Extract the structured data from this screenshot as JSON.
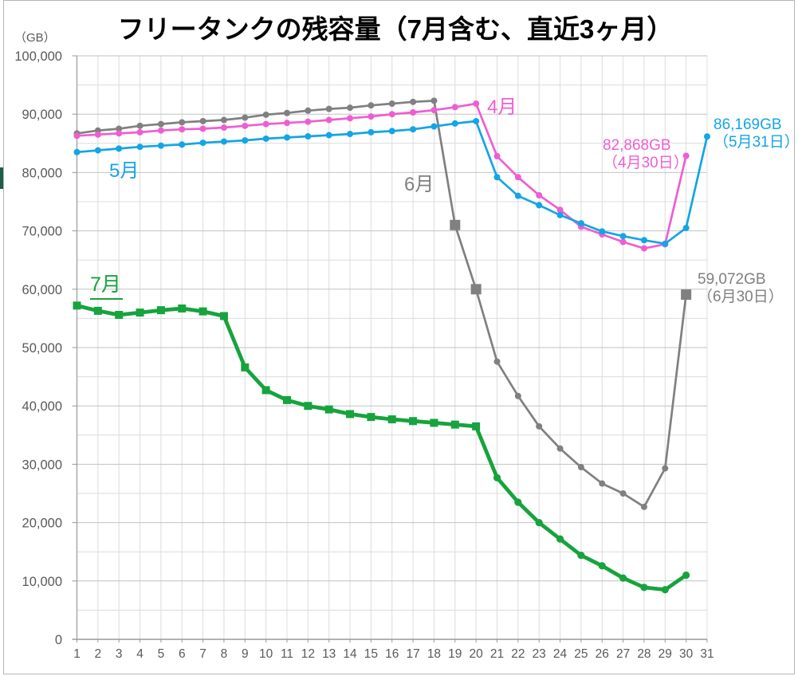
{
  "chart_data": {
    "type": "line",
    "title": "フリータンクの残容量（7月含む、直近3ヶ月）",
    "unit_label": "（GB）",
    "xlabel": "",
    "ylabel": "（GB）",
    "ylim": [
      0,
      100000
    ],
    "y_tick_step": 10000,
    "y_minor_step": 5000,
    "grid": true,
    "legend_position": "inline-labels",
    "x_tick_labels": [
      "1",
      "2",
      "3",
      "4",
      "5",
      "6",
      "7",
      "8",
      "9",
      "10",
      "11",
      "12",
      "13",
      "14",
      "15",
      "16",
      "17",
      "18",
      "19",
      "20",
      "21",
      "22",
      "23",
      "24",
      "25",
      "26",
      "27",
      "28",
      "29",
      "30",
      "31"
    ],
    "y_tick_labels": [
      "0",
      "10,000",
      "20,000",
      "30,000",
      "40,000",
      "50,000",
      "60,000",
      "70,000",
      "80,000",
      "90,000",
      "100,000"
    ],
    "series": [
      {
        "name": "4月",
        "color": "#ee5ed2",
        "marker": "circle",
        "line_width": 2.7,
        "values": [
          86300,
          86500,
          86700,
          86900,
          87200,
          87400,
          87500,
          87700,
          88000,
          88300,
          88500,
          88700,
          89000,
          89300,
          89600,
          90000,
          90300,
          90700,
          91200,
          91800,
          82800,
          79200,
          76100,
          73600,
          70700,
          69400,
          68100,
          67000,
          67700,
          82868
        ]
      },
      {
        "name": "5月",
        "color": "#13a5e6",
        "marker": "circle",
        "line_width": 2.7,
        "values": [
          83500,
          83800,
          84100,
          84400,
          84600,
          84800,
          85100,
          85300,
          85500,
          85800,
          86000,
          86200,
          86400,
          86600,
          86900,
          87100,
          87400,
          87900,
          88400,
          88800,
          79200,
          76000,
          74400,
          72700,
          71300,
          69900,
          69100,
          68400,
          67800,
          70500,
          86169
        ]
      },
      {
        "name": "6月",
        "color": "#808080",
        "marker": "circle",
        "line_width": 2.7,
        "big_square_days": [
          19,
          20,
          30
        ],
        "values": [
          86700,
          87200,
          87500,
          88000,
          88300,
          88600,
          88800,
          89000,
          89400,
          89900,
          90200,
          90600,
          90900,
          91100,
          91500,
          91800,
          92100,
          92300,
          71000,
          60000,
          47600,
          41700,
          36500,
          32700,
          29500,
          26700,
          25000,
          22700,
          29300,
          59072
        ]
      },
      {
        "name": "7月",
        "color": "#17a33d",
        "marker": "square",
        "circle_from_day": 21,
        "line_width": 4.8,
        "values": [
          57200,
          56300,
          55600,
          56000,
          56400,
          56700,
          56200,
          55400,
          46600,
          42700,
          41000,
          40000,
          39400,
          38600,
          38100,
          37700,
          37400,
          37100,
          36800,
          36500,
          27700,
          23500,
          20000,
          17200,
          14400,
          12600,
          10500,
          8900,
          8500,
          11000
        ]
      }
    ],
    "annotations": [
      {
        "series": "5月",
        "day": 31,
        "value": 86169,
        "text_value": "86,169GB",
        "text_date": "（5月31日）"
      },
      {
        "series": "4月",
        "day": 30,
        "value": 82868,
        "text_value": "82,868GB",
        "text_date": "（4月30日）"
      },
      {
        "series": "6月",
        "day": 30,
        "value": 59072,
        "text_value": "59,072GB",
        "text_date": "（6月30日）"
      }
    ],
    "axis_colors": {
      "tick_text": "#595959",
      "grid_minor": "#dcdcdc",
      "grid_major": "#c2c2c2",
      "axis_line": "#999999"
    }
  }
}
